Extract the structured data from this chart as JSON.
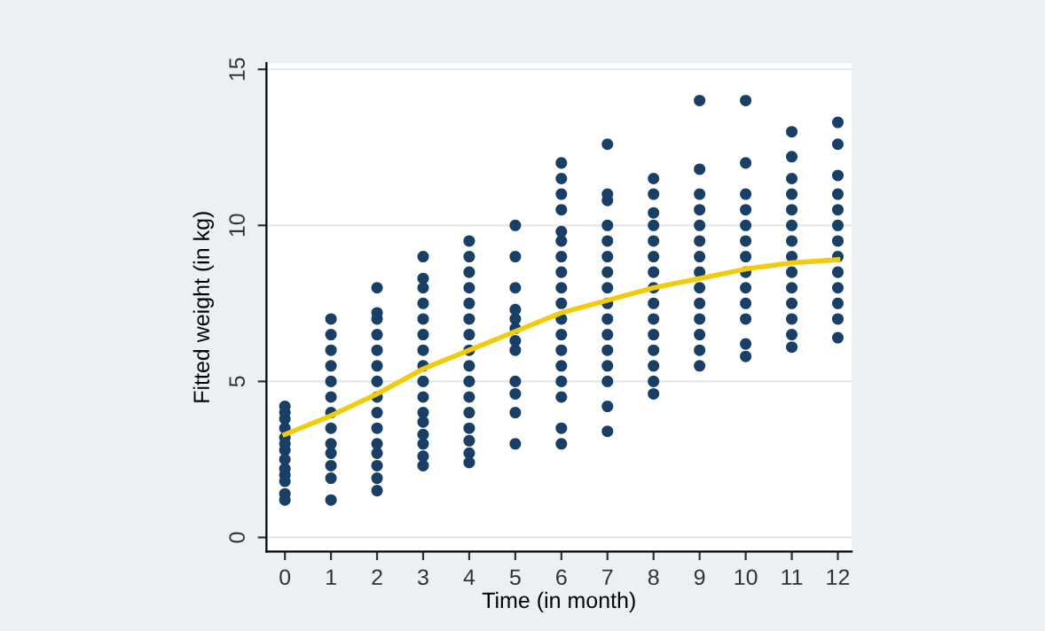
{
  "chart_data": {
    "type": "scatter",
    "xlabel": "Time (in month)",
    "ylabel": "Fitted weight (in kg)",
    "xlim": [
      -0.4,
      12.3
    ],
    "xticks": [
      0,
      1,
      2,
      3,
      4,
      5,
      6,
      7,
      8,
      9,
      10,
      11,
      12
    ],
    "ylim": [
      -0.45,
      15.2
    ],
    "yticks": [
      0,
      5,
      10,
      15
    ],
    "grid": "y",
    "series": [
      {
        "marker": "circle",
        "color": "#1a3f66",
        "x": [
          0,
          0,
          0,
          0,
          0,
          0,
          0,
          0,
          0,
          0,
          0,
          0,
          0,
          1,
          1,
          1,
          1,
          1,
          1,
          1,
          1,
          1,
          1,
          1,
          1,
          1,
          2,
          2,
          2,
          2,
          2,
          2,
          2,
          2,
          2,
          2,
          2,
          2,
          2,
          2,
          2,
          3,
          3,
          3,
          3,
          3,
          3,
          3,
          3,
          3,
          3,
          3,
          3,
          3,
          3,
          3,
          3,
          4,
          4,
          4,
          4,
          4,
          4,
          4,
          4,
          4,
          4,
          4,
          4,
          4,
          4,
          4,
          4,
          5,
          5,
          5,
          5,
          5,
          5,
          5,
          5,
          5,
          5,
          5,
          5,
          6,
          6,
          6,
          6,
          6,
          6,
          6,
          6,
          6,
          6,
          6,
          6,
          6,
          6,
          6,
          6,
          6,
          6,
          7,
          7,
          7,
          7,
          7,
          7,
          7,
          7,
          7,
          7,
          7,
          7,
          7,
          7,
          7,
          7,
          8,
          8,
          8,
          8,
          8,
          8,
          8,
          8,
          8,
          8,
          8,
          8,
          8,
          8,
          8,
          9,
          9,
          9,
          9,
          9,
          9,
          9,
          9,
          9,
          9,
          9,
          9,
          9,
          9,
          10,
          10,
          10,
          10,
          10,
          10,
          10,
          10,
          10,
          10,
          10,
          10,
          10,
          11,
          11,
          11,
          11,
          11,
          11,
          11,
          11,
          11,
          11,
          11,
          11,
          11,
          11,
          12,
          12,
          12,
          12,
          12,
          12,
          12,
          12,
          12,
          12,
          12,
          12,
          12
        ],
        "values": [
          1.2,
          1.4,
          1.8,
          2.0,
          2.2,
          2.5,
          2.8,
          3.0,
          3.2,
          3.5,
          3.8,
          4.0,
          4.2,
          1.2,
          1.9,
          2.3,
          2.7,
          3.0,
          3.5,
          4.0,
          4.5,
          5.0,
          5.5,
          6.0,
          6.5,
          7.0,
          1.5,
          1.9,
          2.3,
          2.7,
          3.0,
          3.5,
          4.0,
          4.5,
          5.0,
          5.5,
          6.0,
          6.5,
          7.0,
          7.2,
          8.0,
          2.3,
          2.6,
          3.0,
          3.3,
          3.7,
          4.0,
          4.5,
          5.0,
          5.5,
          6.0,
          6.5,
          7.0,
          7.5,
          8.0,
          8.3,
          9.0,
          2.4,
          2.7,
          3.1,
          3.5,
          4.0,
          4.5,
          5.0,
          5.5,
          6.0,
          6.5,
          7.0,
          7.5,
          8.0,
          8.5,
          9.0,
          9.5,
          3.0,
          4.0,
          4.6,
          5.0,
          6.0,
          6.3,
          6.7,
          7.0,
          7.3,
          8.0,
          9.0,
          10.0,
          3.0,
          3.5,
          4.5,
          5.0,
          5.5,
          6.0,
          6.5,
          7.0,
          7.5,
          8.0,
          8.5,
          9.0,
          9.5,
          9.8,
          10.5,
          11.0,
          11.5,
          12.0,
          3.4,
          4.2,
          5.0,
          5.5,
          6.0,
          6.5,
          7.0,
          7.5,
          8.0,
          8.5,
          9.0,
          9.5,
          10.0,
          10.8,
          11.0,
          12.6,
          4.6,
          5.0,
          5.5,
          6.0,
          6.5,
          7.0,
          7.5,
          8.0,
          8.5,
          9.0,
          9.5,
          10.0,
          10.4,
          11.0,
          11.5,
          5.5,
          6.0,
          6.5,
          7.0,
          7.5,
          8.0,
          8.5,
          9.0,
          9.5,
          10.0,
          10.5,
          11.0,
          11.8,
          14.0,
          5.8,
          6.2,
          7.0,
          7.5,
          8.0,
          8.5,
          9.0,
          9.5,
          10.0,
          10.5,
          11.0,
          12.0,
          14.0,
          6.1,
          6.5,
          7.0,
          7.5,
          8.0,
          8.5,
          9.0,
          9.5,
          10.0,
          10.5,
          11.0,
          11.5,
          12.2,
          13.0,
          6.4,
          7.0,
          7.5,
          8.0,
          8.5,
          9.0,
          9.5,
          10.0,
          10.5,
          11.0,
          11.6,
          12.6,
          13.3
        ]
      },
      {
        "type": "line",
        "color": "#f2cc0c",
        "x": [
          0,
          1,
          2,
          3,
          4,
          5,
          6,
          7,
          8,
          9,
          10,
          11,
          12
        ],
        "values": [
          3.3,
          3.9,
          4.6,
          5.4,
          6.0,
          6.6,
          7.2,
          7.6,
          8.0,
          8.3,
          8.6,
          8.8,
          8.9
        ]
      }
    ]
  }
}
